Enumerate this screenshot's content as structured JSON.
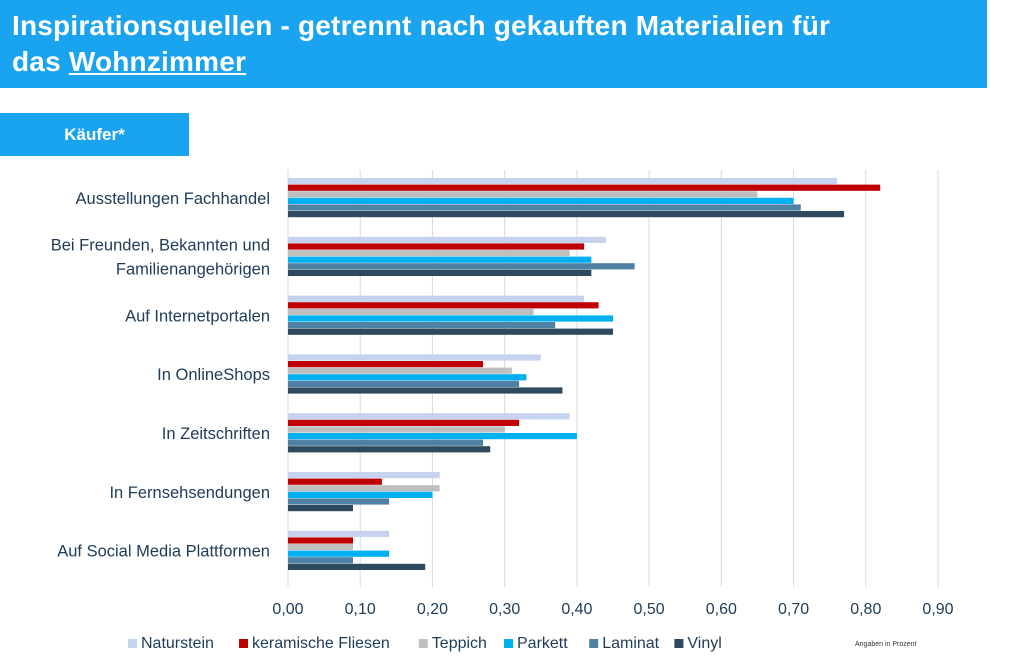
{
  "header": {
    "title_line1": "Inspirationsquellen - getrennt nach gekauften Materialien für",
    "title_line2_prefix": "das ",
    "title_line2_underlined": "Wohnzimmer"
  },
  "tag": {
    "label": "Käufer*"
  },
  "footnote": "Angaben in Prozent",
  "colors": {
    "accent": "#1aa3ef",
    "grid": "#d9d9d9",
    "text": "#1f3b57"
  },
  "chart_data": {
    "type": "bar",
    "orientation": "horizontal",
    "categories": [
      [
        "Ausstellungen Fachhandel"
      ],
      [
        "Bei Freunden, Bekannten und",
        "Familienangehörigen"
      ],
      [
        "Auf Internetportalen"
      ],
      [
        "In OnlineShops"
      ],
      [
        "In Zeitschriften"
      ],
      [
        "In Fernsehsendungen"
      ],
      [
        "Auf Social Media Plattformen"
      ]
    ],
    "series": [
      {
        "name": "Naturstein",
        "color": "#c5d3ee",
        "values": [
          0.76,
          0.44,
          0.41,
          0.35,
          0.39,
          0.21,
          0.14
        ]
      },
      {
        "name": "keramische Fliesen",
        "color": "#c00000",
        "values": [
          0.82,
          0.41,
          0.43,
          0.27,
          0.32,
          0.13,
          0.09
        ]
      },
      {
        "name": "Teppich",
        "color": "#bfbfbf",
        "values": [
          0.65,
          0.39,
          0.34,
          0.31,
          0.3,
          0.21,
          0.09
        ]
      },
      {
        "name": "Parkett",
        "color": "#00b0f0",
        "values": [
          0.7,
          0.42,
          0.45,
          0.33,
          0.4,
          0.2,
          0.14
        ]
      },
      {
        "name": "Laminat",
        "color": "#4f81a5",
        "values": [
          0.71,
          0.48,
          0.37,
          0.32,
          0.27,
          0.14,
          0.09
        ]
      },
      {
        "name": "Vinyl",
        "color": "#2e4a5f",
        "values": [
          0.77,
          0.42,
          0.45,
          0.38,
          0.28,
          0.09,
          0.19
        ]
      }
    ],
    "xlim": [
      0,
      0.9
    ],
    "xticks": [
      "0,00",
      "0,10",
      "0,20",
      "0,30",
      "0,40",
      "0,50",
      "0,60",
      "0,70",
      "0,80",
      "0,90"
    ],
    "grid": true,
    "legend_position": "bottom"
  }
}
